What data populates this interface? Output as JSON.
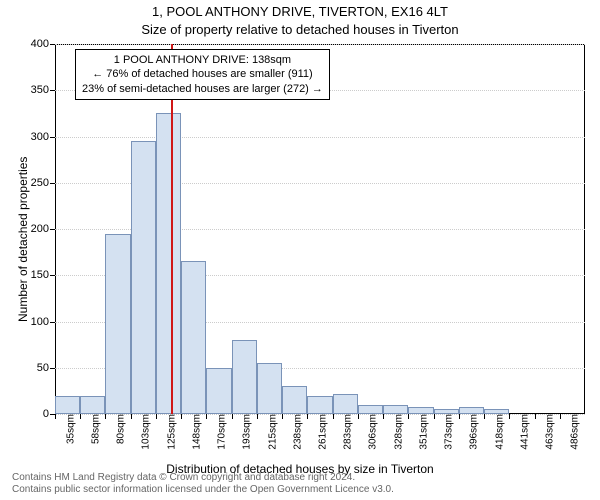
{
  "title_main": "1, POOL ANTHONY DRIVE, TIVERTON, EX16 4LT",
  "title_sub": "Size of property relative to detached houses in Tiverton",
  "xlabel": "Distribution of detached houses by size in Tiverton",
  "ylabel": "Number of detached properties",
  "chart": {
    "type": "histogram",
    "background_color": "#ffffff",
    "grid_color": "#cccccc",
    "axis_color": "#000000",
    "bar_fill": "#d4e1f1",
    "bar_border": "#7a93b8",
    "marker_color": "#d01717",
    "y": {
      "min": 0,
      "max": 400,
      "ticks": [
        0,
        50,
        100,
        150,
        200,
        250,
        300,
        350,
        400
      ]
    },
    "x": {
      "categories": [
        "35sqm",
        "58sqm",
        "80sqm",
        "103sqm",
        "125sqm",
        "148sqm",
        "170sqm",
        "193sqm",
        "215sqm",
        "238sqm",
        "261sqm",
        "283sqm",
        "306sqm",
        "328sqm",
        "351sqm",
        "373sqm",
        "396sqm",
        "418sqm",
        "441sqm",
        "463sqm",
        "486sqm"
      ]
    },
    "bars": [
      20,
      20,
      195,
      295,
      325,
      165,
      50,
      80,
      55,
      30,
      20,
      22,
      10,
      10,
      8,
      5,
      8,
      5,
      0,
      0,
      0
    ],
    "marker_index": 4.6,
    "annotation": {
      "line1": "1 POOL ANTHONY DRIVE: 138sqm",
      "line2": "← 76% of detached houses are smaller (911)",
      "line3": "23% of semi-detached houses are larger (272) →"
    }
  },
  "footer_line1": "Contains HM Land Registry data © Crown copyright and database right 2024.",
  "footer_line2": "Contains public sector information licensed under the Open Government Licence v3.0."
}
